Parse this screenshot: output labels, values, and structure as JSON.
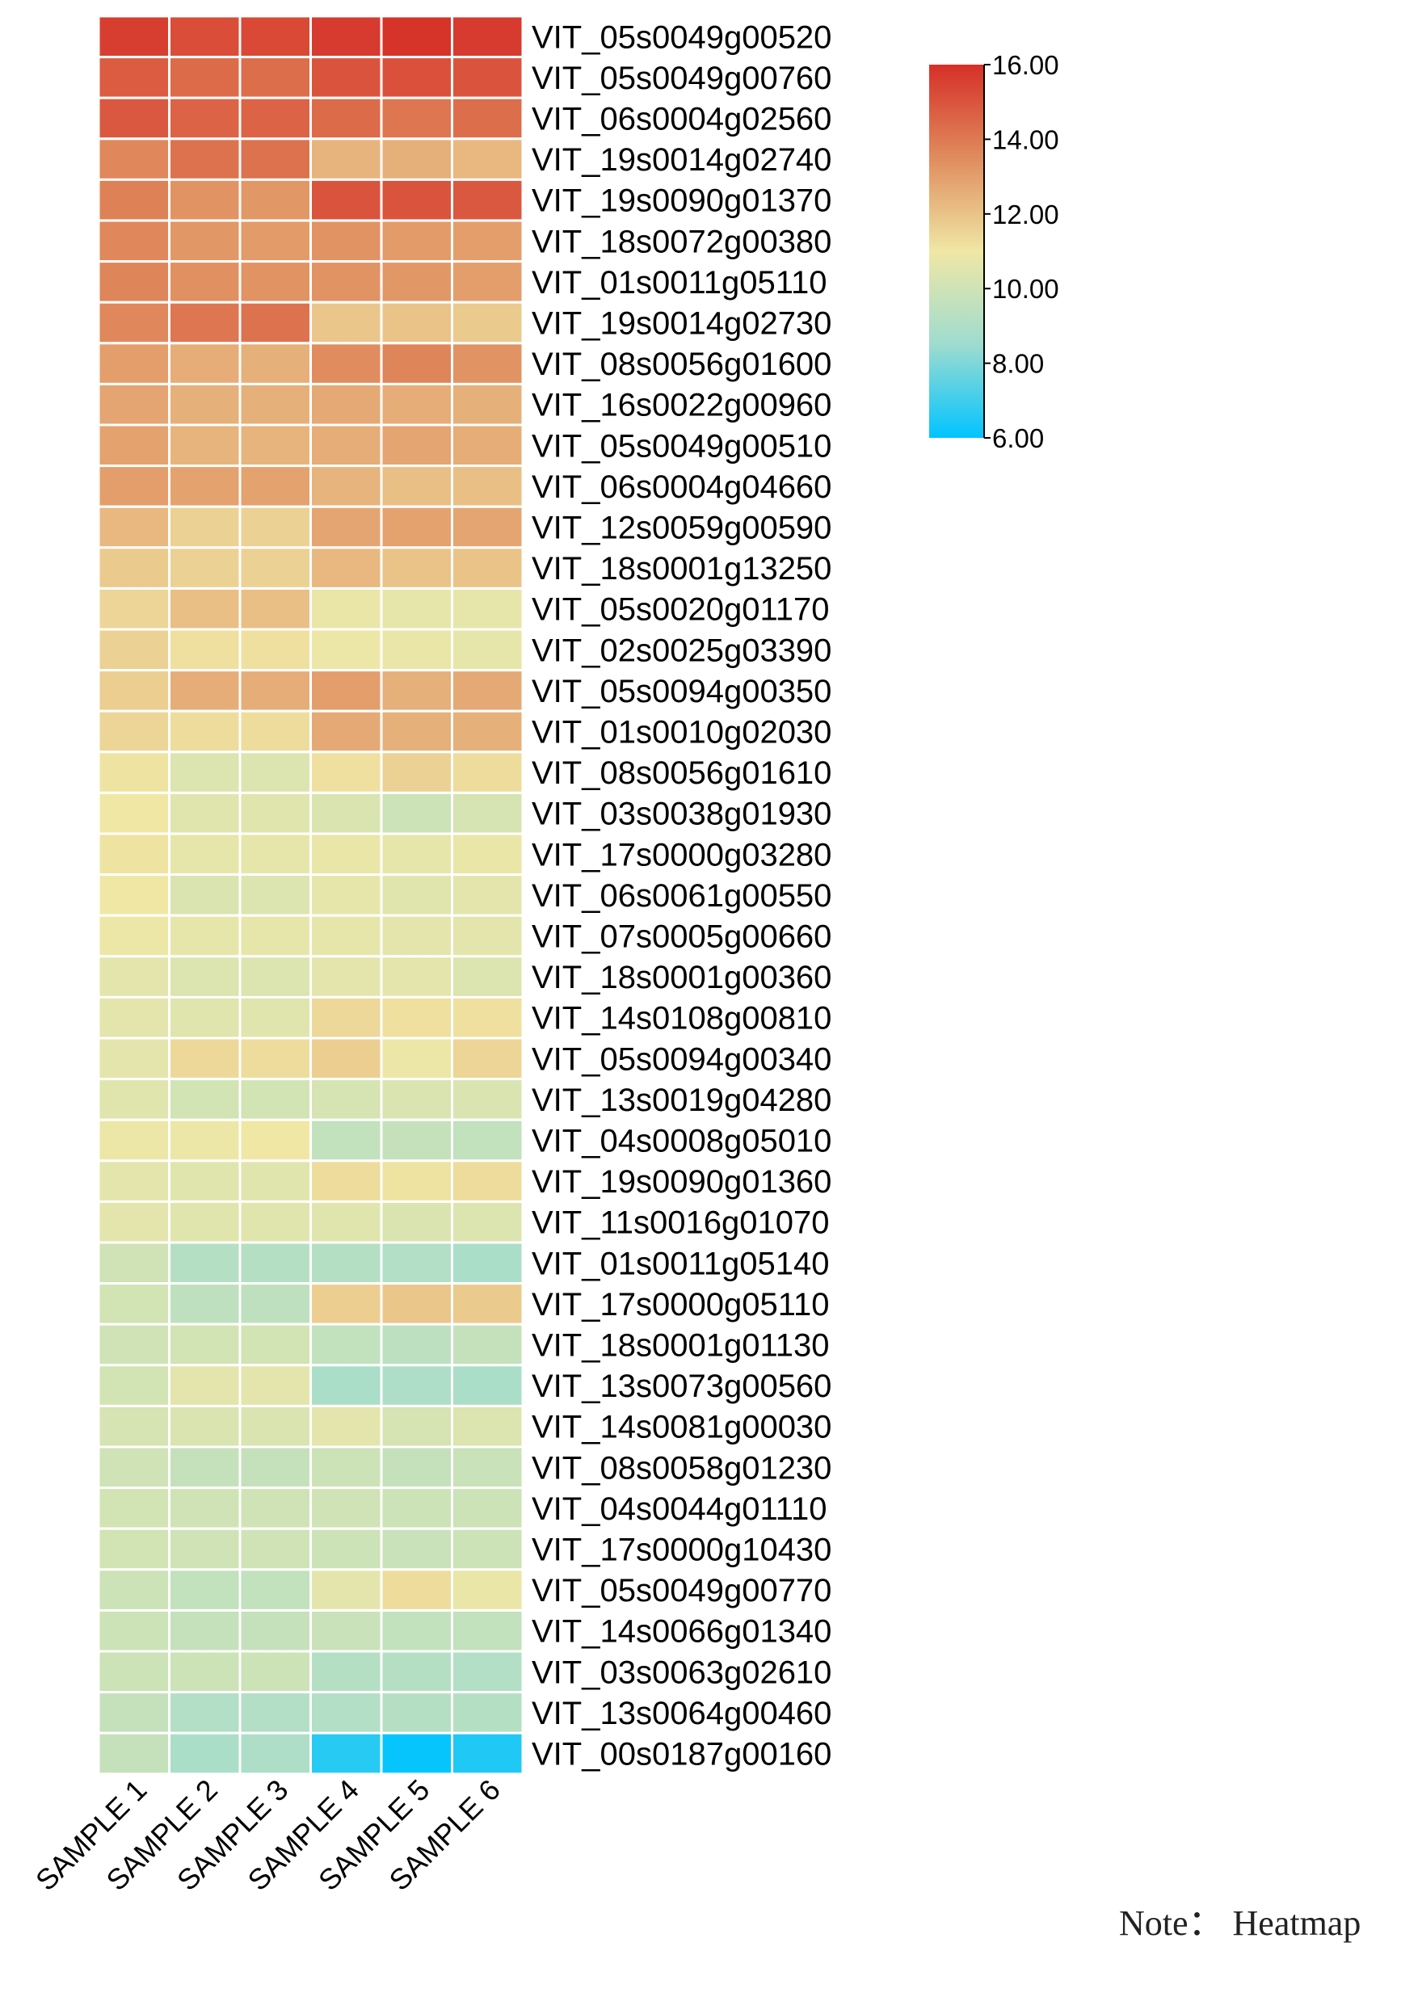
{
  "chart_data": {
    "type": "heatmap",
    "columns": [
      "SAMPLE 1",
      "SAMPLE 2",
      "SAMPLE 3",
      "SAMPLE 4",
      "SAMPLE 5",
      "SAMPLE 6"
    ],
    "rows": [
      {
        "gene": "VIT_05s0049g00520",
        "values": [
          15.6,
          15.2,
          15.3,
          15.7,
          15.9,
          15.7
        ]
      },
      {
        "gene": "VIT_05s0049g00760",
        "values": [
          14.8,
          14.4,
          14.3,
          15.0,
          15.1,
          15.0
        ]
      },
      {
        "gene": "VIT_06s0004g02560",
        "values": [
          14.9,
          14.6,
          14.6,
          14.4,
          14.1,
          14.3
        ]
      },
      {
        "gene": "VIT_19s0014g02740",
        "values": [
          13.6,
          14.2,
          14.2,
          12.4,
          12.5,
          12.3
        ]
      },
      {
        "gene": "VIT_19s0090g01370",
        "values": [
          13.8,
          13.3,
          13.2,
          15.0,
          15.0,
          14.9
        ]
      },
      {
        "gene": "VIT_18s0072g00380",
        "values": [
          13.6,
          13.2,
          13.1,
          13.3,
          13.1,
          13.0
        ]
      },
      {
        "gene": "VIT_01s0011g05110",
        "values": [
          13.7,
          13.4,
          13.3,
          13.3,
          13.2,
          13.0
        ]
      },
      {
        "gene": "VIT_19s0014g02730",
        "values": [
          13.6,
          14.1,
          14.2,
          11.9,
          12.0,
          11.8
        ]
      },
      {
        "gene": "VIT_08s0056g01600",
        "values": [
          13.0,
          12.6,
          12.5,
          13.5,
          13.7,
          13.3
        ]
      },
      {
        "gene": "VIT_16s0022g00960",
        "values": [
          12.8,
          12.5,
          12.5,
          12.7,
          12.6,
          12.5
        ]
      },
      {
        "gene": "VIT_05s0049g00510",
        "values": [
          12.9,
          12.4,
          12.4,
          12.6,
          12.8,
          12.6
        ]
      },
      {
        "gene": "VIT_06s0004g04660",
        "values": [
          13.0,
          12.9,
          12.9,
          12.4,
          12.1,
          12.1
        ]
      },
      {
        "gene": "VIT_12s0059g00590",
        "values": [
          12.3,
          11.6,
          11.6,
          12.8,
          12.9,
          12.8
        ]
      },
      {
        "gene": "VIT_18s0001g13250",
        "values": [
          11.8,
          11.6,
          11.6,
          12.3,
          12.0,
          12.0
        ]
      },
      {
        "gene": "VIT_05s0020g01170",
        "values": [
          11.5,
          12.1,
          12.1,
          10.8,
          10.7,
          10.7
        ]
      },
      {
        "gene": "VIT_02s0025g03390",
        "values": [
          11.6,
          11.2,
          11.2,
          10.9,
          10.8,
          10.7
        ]
      },
      {
        "gene": "VIT_05s0094g00350",
        "values": [
          11.7,
          12.6,
          12.6,
          13.0,
          12.5,
          12.7
        ]
      },
      {
        "gene": "VIT_01s0010g02030",
        "values": [
          11.5,
          11.3,
          11.3,
          12.7,
          12.5,
          12.5
        ]
      },
      {
        "gene": "VIT_08s0056g01610",
        "values": [
          11.1,
          10.4,
          10.4,
          11.2,
          11.6,
          11.3
        ]
      },
      {
        "gene": "VIT_03s0038g01930",
        "values": [
          11.0,
          10.5,
          10.5,
          10.3,
          9.9,
          10.2
        ]
      },
      {
        "gene": "VIT_17s0000g03280",
        "values": [
          11.1,
          10.7,
          10.7,
          10.8,
          10.7,
          10.8
        ]
      },
      {
        "gene": "VIT_06s0061g00550",
        "values": [
          11.0,
          10.3,
          10.4,
          10.7,
          10.5,
          10.6
        ]
      },
      {
        "gene": "VIT_07s0005g00660",
        "values": [
          10.9,
          10.7,
          10.7,
          10.7,
          10.6,
          10.6
        ]
      },
      {
        "gene": "VIT_18s0001g00360",
        "values": [
          10.6,
          10.4,
          10.4,
          10.6,
          10.6,
          10.4
        ]
      },
      {
        "gene": "VIT_14s0108g00810",
        "values": [
          10.6,
          10.5,
          10.5,
          11.4,
          11.2,
          11.2
        ]
      },
      {
        "gene": "VIT_05s0094g00340",
        "values": [
          10.6,
          11.4,
          11.3,
          11.7,
          10.9,
          11.5
        ]
      },
      {
        "gene": "VIT_13s0019g04280",
        "values": [
          10.5,
          10.1,
          10.1,
          10.2,
          10.3,
          10.3
        ]
      },
      {
        "gene": "VIT_04s0008g05010",
        "values": [
          10.9,
          10.9,
          11.0,
          9.6,
          9.7,
          9.6
        ]
      },
      {
        "gene": "VIT_19s0090g01360",
        "values": [
          10.6,
          10.5,
          10.5,
          11.3,
          11.1,
          11.3
        ]
      },
      {
        "gene": "VIT_11s0016g01070",
        "values": [
          10.6,
          10.5,
          10.5,
          10.5,
          10.3,
          10.4
        ]
      },
      {
        "gene": "VIT_01s0011g05140",
        "values": [
          10.0,
          9.2,
          9.2,
          9.2,
          9.1,
          8.9
        ]
      },
      {
        "gene": "VIT_17s0000g05110",
        "values": [
          10.1,
          9.5,
          9.5,
          11.7,
          11.9,
          11.8
        ]
      },
      {
        "gene": "VIT_18s0001g01130",
        "values": [
          10.0,
          10.1,
          10.1,
          9.6,
          9.4,
          9.7
        ]
      },
      {
        "gene": "VIT_13s0073g00560",
        "values": [
          10.1,
          10.6,
          10.6,
          8.9,
          9.0,
          8.9
        ]
      },
      {
        "gene": "VIT_14s0081g00030",
        "values": [
          10.2,
          10.3,
          10.3,
          10.6,
          10.2,
          10.4
        ]
      },
      {
        "gene": "VIT_08s0058g01230",
        "values": [
          10.0,
          9.7,
          9.7,
          9.9,
          9.7,
          9.8
        ]
      },
      {
        "gene": "VIT_04s0044g01110",
        "values": [
          10.1,
          10.0,
          10.0,
          10.0,
          9.9,
          9.9
        ]
      },
      {
        "gene": "VIT_17s0000g10430",
        "values": [
          10.1,
          10.0,
          10.0,
          9.9,
          9.8,
          9.9
        ]
      },
      {
        "gene": "VIT_05s0049g00770",
        "values": [
          9.9,
          9.6,
          9.6,
          10.6,
          11.3,
          10.8
        ]
      },
      {
        "gene": "VIT_14s0066g01340",
        "values": [
          9.9,
          9.7,
          9.7,
          9.8,
          9.6,
          9.6
        ]
      },
      {
        "gene": "VIT_03s0063g02610",
        "values": [
          9.9,
          9.9,
          9.9,
          9.2,
          9.2,
          9.1
        ]
      },
      {
        "gene": "VIT_13s0064g00460",
        "values": [
          9.7,
          9.1,
          9.1,
          9.1,
          9.2,
          9.2
        ]
      },
      {
        "gene": "VIT_00s0187g00160",
        "values": [
          9.7,
          8.9,
          9.0,
          6.6,
          6.1,
          6.5
        ]
      }
    ],
    "colorbar": {
      "min": 6.0,
      "max": 16.0,
      "ticks": [
        "16.00",
        "14.00",
        "12.00",
        "10.00",
        "8.00",
        "6.00"
      ],
      "colors": [
        "#00c4ff",
        "#9edccf",
        "#f0e7a5",
        "#e08c5e",
        "#d62f27"
      ],
      "position": "top-right"
    },
    "grid_lines": "white"
  },
  "note": "Note： Heatmap"
}
